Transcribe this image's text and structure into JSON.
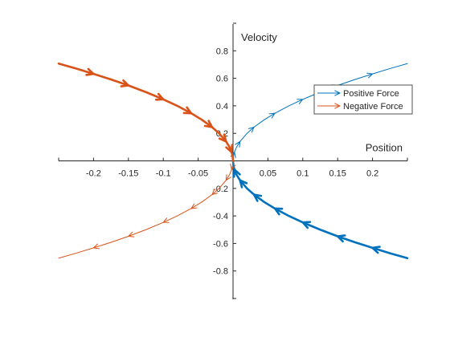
{
  "chart_data": {
    "type": "line",
    "title": "",
    "xlabel": "Position",
    "ylabel": "Velocity",
    "xlim": [
      -0.25,
      0.25
    ],
    "ylim": [
      -1,
      1
    ],
    "xticks": [
      -0.2,
      -0.15,
      -0.1,
      -0.05,
      0.05,
      0.1,
      0.15,
      0.2
    ],
    "xtick_labels": [
      "-0.2",
      "-0.15",
      "-0.1",
      "-0.05",
      "0.05",
      "0.1",
      "0.15",
      "0.2"
    ],
    "yticks": [
      -0.8,
      -0.6,
      -0.4,
      -0.2,
      0.2,
      0.4,
      0.6,
      0.8
    ],
    "ytick_labels": [
      "-0.8",
      "-0.6",
      "-0.4",
      "-0.2",
      "0.2",
      "0.4",
      "0.6",
      "0.8"
    ],
    "grid": false,
    "legend_position": "top-right",
    "series": [
      {
        "name": "Positive Force",
        "color": "#0072BD",
        "segments": [
          {
            "x": [
              0,
              0.0005,
              0.002,
              0.005,
              0.01,
              0.02,
              0.03,
              0.045,
              0.06,
              0.08,
              0.1,
              0.125,
              0.15,
              0.175,
              0.2,
              0.225,
              0.25
            ],
            "y": [
              0,
              0.032,
              0.063,
              0.1,
              0.141,
              0.2,
              0.245,
              0.3,
              0.346,
              0.4,
              0.447,
              0.5,
              0.548,
              0.592,
              0.632,
              0.671,
              0.707
            ],
            "style": "thin",
            "arrow_direction": "outward"
          },
          {
            "x": [
              0,
              0.0005,
              0.002,
              0.005,
              0.01,
              0.02,
              0.03,
              0.045,
              0.06,
              0.08,
              0.1,
              0.125,
              0.15,
              0.175,
              0.2,
              0.225,
              0.25
            ],
            "y": [
              0,
              -0.032,
              -0.063,
              -0.1,
              -0.141,
              -0.2,
              -0.245,
              -0.3,
              -0.346,
              -0.4,
              -0.447,
              -0.5,
              -0.548,
              -0.592,
              -0.632,
              -0.671,
              -0.707
            ],
            "style": "thick",
            "arrow_direction": "inward"
          }
        ]
      },
      {
        "name": "Negative Force",
        "color": "#D95319",
        "segments": [
          {
            "x": [
              0,
              -0.0005,
              -0.002,
              -0.005,
              -0.01,
              -0.02,
              -0.03,
              -0.045,
              -0.06,
              -0.08,
              -0.1,
              -0.125,
              -0.15,
              -0.175,
              -0.2,
              -0.225,
              -0.25
            ],
            "y": [
              0,
              0.032,
              0.063,
              0.1,
              0.141,
              0.2,
              0.245,
              0.3,
              0.346,
              0.4,
              0.447,
              0.5,
              0.548,
              0.592,
              0.632,
              0.671,
              0.707
            ],
            "style": "thick",
            "arrow_direction": "inward"
          },
          {
            "x": [
              0,
              -0.0005,
              -0.002,
              -0.005,
              -0.01,
              -0.02,
              -0.03,
              -0.045,
              -0.06,
              -0.08,
              -0.1,
              -0.125,
              -0.15,
              -0.175,
              -0.2,
              -0.225,
              -0.25
            ],
            "y": [
              0,
              -0.032,
              -0.063,
              -0.1,
              -0.141,
              -0.2,
              -0.245,
              -0.3,
              -0.346,
              -0.4,
              -0.447,
              -0.5,
              -0.548,
              -0.592,
              -0.632,
              -0.671,
              -0.707
            ],
            "style": "thin",
            "arrow_direction": "outward"
          }
        ]
      }
    ]
  }
}
